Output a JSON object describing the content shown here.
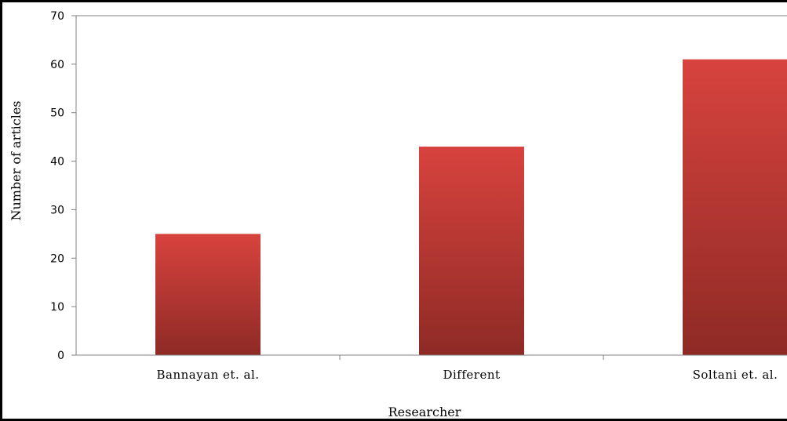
{
  "chart_data": {
    "type": "bar",
    "title": "",
    "xlabel": "Researcher",
    "ylabel": "Number of articles",
    "categories": [
      "Bannayan et. al.",
      "Different",
      "Soltani et. al."
    ],
    "values": [
      25,
      43,
      61
    ],
    "ylim": [
      0,
      70
    ],
    "yticks": [
      "0",
      "10",
      "20",
      "30",
      "40",
      "50",
      "60",
      "70"
    ],
    "grid": false,
    "legend": "none",
    "colors": {
      "bar_top": "#D8433E",
      "bar_bottom": "#8E2A25",
      "axis": "#808080"
    }
  }
}
